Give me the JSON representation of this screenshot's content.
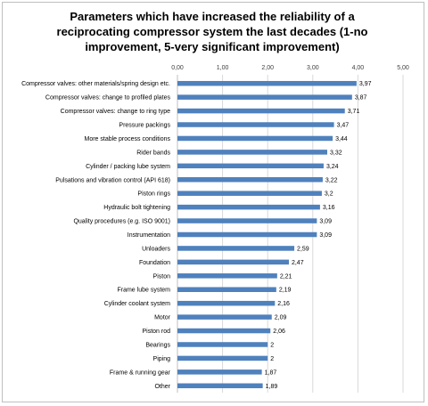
{
  "chart_data": {
    "type": "bar",
    "orientation": "horizontal",
    "title_lines": [
      "Parameters which have increased the reliability of a",
      "reciprocating compressor system the last decades (1-no",
      "improvement, 5-very significant improvement)"
    ],
    "xlim": [
      0,
      5
    ],
    "x_ticks": [
      "0,00",
      "1,00",
      "2,00",
      "3,00",
      "4,00",
      "5,00"
    ],
    "x_tick_values": [
      0,
      1,
      2,
      3,
      4,
      5
    ],
    "grid": true,
    "legend": "none",
    "bar_color": "#4f81bd",
    "categories": [
      "Compressor valves: other materials/spring design etc.",
      "Compressor valves: change to profiled plates",
      "Compressor valves: change to ring type",
      "Pressure packings",
      "More stable process conditions",
      "Rider bands",
      "Cylinder / packing lube system",
      "Pulsations and vibration control (API 618)",
      "Piston rings",
      "Hydraulic bolt tightening",
      "Quality procedures (e.g. ISO 9001)",
      "Instrumentation",
      "Unloaders",
      "Foundation",
      "Piston",
      "Frame lube system",
      "Cylinder coolant system",
      "Motor",
      "Piston rod",
      "Bearings",
      "Piping",
      "Frame & running gear",
      "Other"
    ],
    "values": [
      3.97,
      3.87,
      3.71,
      3.47,
      3.44,
      3.32,
      3.24,
      3.22,
      3.2,
      3.16,
      3.09,
      3.09,
      2.59,
      2.47,
      2.21,
      2.19,
      2.16,
      2.09,
      2.06,
      2,
      2,
      1.87,
      1.89
    ],
    "value_labels": [
      "3,97",
      "3,87",
      "3,71",
      "3,47",
      "3,44",
      "3,32",
      "3,24",
      "3,22",
      "3,2",
      "3,16",
      "3,09",
      "3,09",
      "2,59",
      "2,47",
      "2,21",
      "2,19",
      "2,16",
      "2,09",
      "2,06",
      "2",
      "2",
      "1,87",
      "1,89"
    ]
  }
}
